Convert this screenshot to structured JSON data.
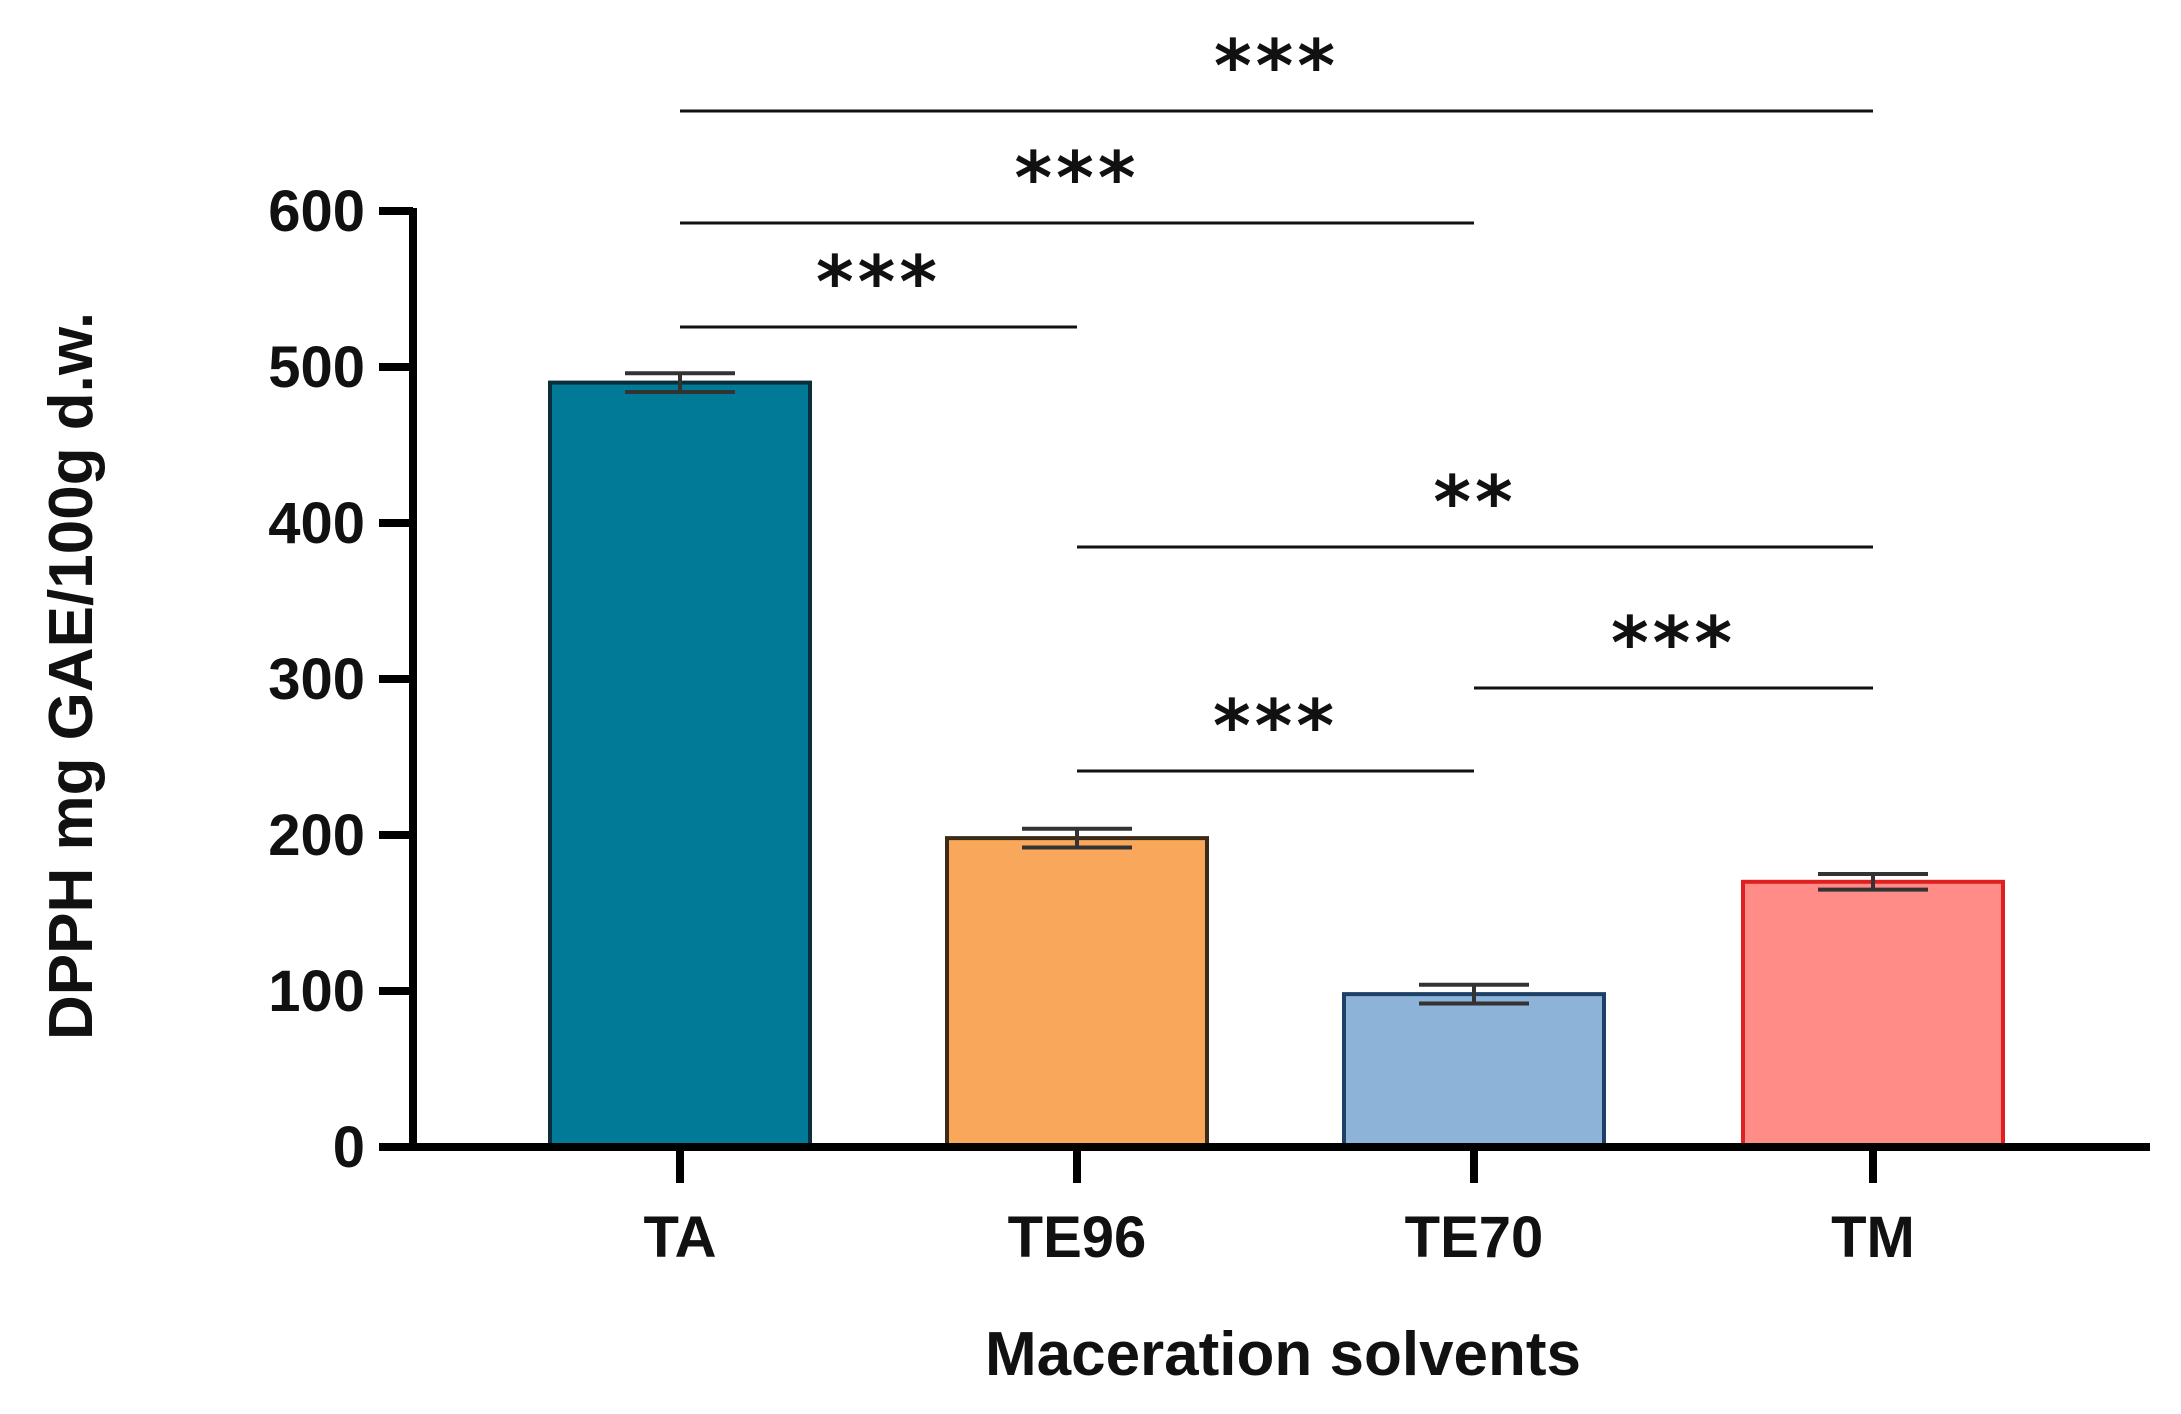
{
  "chart_data": {
    "type": "bar",
    "xlabel": "Maceration solvents",
    "ylabel": "DPPH mg GAE/100g d.w.",
    "categories": [
      "TA",
      "TE96",
      "TE70",
      "TM"
    ],
    "values": [
      490,
      198,
      98,
      170
    ],
    "errors": [
      6,
      6,
      6,
      5
    ],
    "bar_colors": [
      "#007A96",
      "#F9A85B",
      "#8EB3D8",
      "#FF8C87"
    ],
    "bar_edge_colors": [
      "#0B2F3A",
      "#3A2A18",
      "#1E3F66",
      "#E02020"
    ],
    "ylim": [
      0,
      600
    ],
    "yticks": [
      "0",
      "100",
      "200",
      "300",
      "400",
      "500",
      "600"
    ],
    "grid": false,
    "significance": [
      {
        "from": "TA",
        "to": "TM",
        "label": "***"
      },
      {
        "from": "TA",
        "to": "TE70",
        "label": "***"
      },
      {
        "from": "TA",
        "to": "TE96",
        "label": "***"
      },
      {
        "from": "TE96",
        "to": "TM",
        "label": "**"
      },
      {
        "from": "TE70",
        "to": "TM",
        "label": "***"
      },
      {
        "from": "TE96",
        "to": "TE70",
        "label": "***"
      }
    ]
  }
}
